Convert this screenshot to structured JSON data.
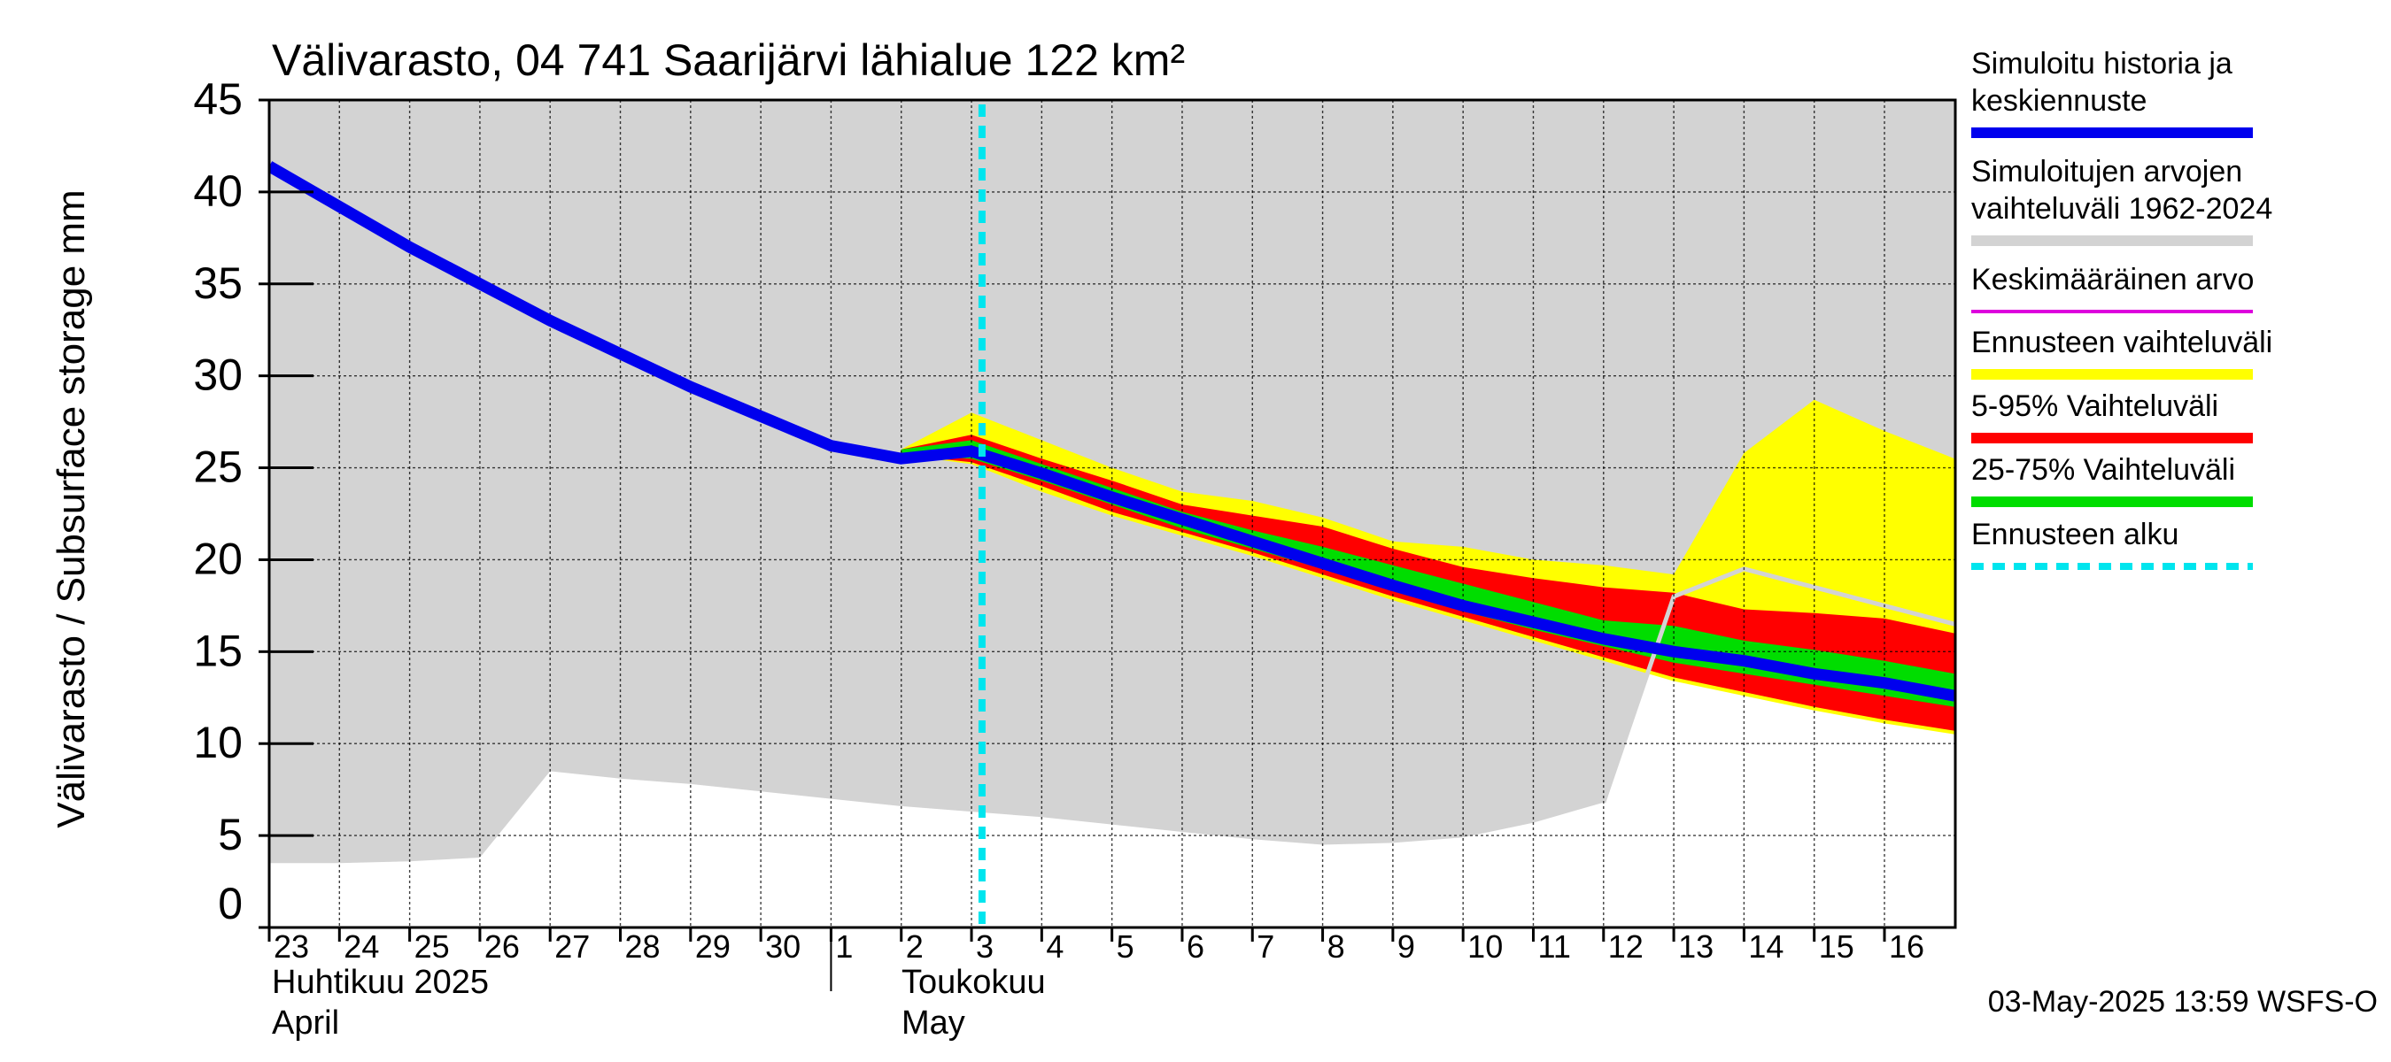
{
  "chart_data": {
    "type": "area",
    "title": "Välivarasto, 04 741 Saarijärvi lähialue 122 km²",
    "ylabel": "Välivarasto / Subsurface storage  mm",
    "ylim": [
      0,
      45
    ],
    "y_ticks": [
      "0",
      "5",
      "10",
      "15",
      "20",
      "25",
      "30",
      "35",
      "40",
      "45"
    ],
    "x_start": "2025-04-23",
    "x_end": "2025-05-16",
    "x_tick_labels": [
      "23",
      "24",
      "25",
      "26",
      "27",
      "28",
      "29",
      "30",
      "1",
      "2",
      "3",
      "4",
      "5",
      "6",
      "7",
      "8",
      "9",
      "10",
      "11",
      "12",
      "13",
      "14",
      "15",
      "16"
    ],
    "month_labels": [
      {
        "fi": "Huhtikuu  2025",
        "en": "April"
      },
      {
        "fi": "Toukokuu",
        "en": "May"
      }
    ],
    "timestamp": "03-May-2025 13:59 WSFS-O",
    "forecast_start": "2025-05-03",
    "grid": true,
    "legend_position": "right",
    "legend": [
      {
        "label": "Simuloitu historia ja keskiennuste",
        "color": "#0000ee",
        "style": "thick"
      },
      {
        "label": "Simuloitujen arvojen vaihteluväli 1962-2024",
        "color": "#d3d3d3",
        "style": "thick"
      },
      {
        "label": "Keskimääräinen arvo",
        "color": "#dd00dd",
        "style": "thin"
      },
      {
        "label": "Ennusteen vaihteluväli",
        "color": "#ffff00",
        "style": "thick"
      },
      {
        "label": "5-95% Vaihteluväli",
        "color": "#ff0000",
        "style": "thick"
      },
      {
        "label": "25-75% Vaihteluväli",
        "color": "#00dd00",
        "style": "thick"
      },
      {
        "label": "Ennusteen alku",
        "color": "#00e5ee",
        "style": "dashed"
      }
    ],
    "series": [
      {
        "name": "Simuloitujen arvojen vaihteluväli 1962-2024",
        "x": [
          "2025-04-23",
          "2025-04-24",
          "2025-04-25",
          "2025-04-26",
          "2025-04-27",
          "2025-04-28",
          "2025-04-29",
          "2025-04-30",
          "2025-05-01",
          "2025-05-02",
          "2025-05-03",
          "2025-05-04",
          "2025-05-05",
          "2025-05-06",
          "2025-05-07",
          "2025-05-08",
          "2025-05-09",
          "2025-05-10",
          "2025-05-11",
          "2025-05-12",
          "2025-05-13",
          "2025-05-14",
          "2025-05-15",
          "2025-05-16",
          "2025-05-17"
        ],
        "lower": [
          3.5,
          3.5,
          3.6,
          3.8,
          8.5,
          8.1,
          7.8,
          7.4,
          7.0,
          6.6,
          6.3,
          6.0,
          5.6,
          5.2,
          4.8,
          4.5,
          4.6,
          4.9,
          5.7,
          6.8,
          18.0,
          19.5,
          18.5,
          17.5,
          16.5
        ],
        "upper": [
          45,
          45,
          45,
          45,
          45,
          45,
          45,
          45,
          45,
          45,
          45,
          45,
          45,
          45,
          45,
          45,
          45,
          45,
          45,
          45,
          45,
          45,
          45,
          45,
          45
        ]
      },
      {
        "name": "Ennusteen vaihteluväli",
        "x": [
          "2025-05-02",
          "2025-05-03",
          "2025-05-04",
          "2025-05-05",
          "2025-05-06",
          "2025-05-07",
          "2025-05-08",
          "2025-05-09",
          "2025-05-10",
          "2025-05-11",
          "2025-05-12",
          "2025-05-13",
          "2025-05-14",
          "2025-05-15",
          "2025-05-16",
          "2025-05-17"
        ],
        "lower": [
          25.7,
          25.2,
          23.7,
          22.4,
          21.3,
          20.2,
          19.0,
          17.8,
          16.7,
          15.6,
          14.5,
          13.4,
          12.6,
          11.8,
          11.1,
          10.5
        ],
        "upper": [
          26.0,
          28.0,
          26.5,
          25.0,
          23.7,
          23.2,
          22.3,
          21.0,
          20.7,
          20.0,
          19.7,
          19.2,
          25.8,
          28.7,
          27.0,
          25.5
        ]
      },
      {
        "name": "5-95% Vaihteluväli",
        "x": [
          "2025-05-02",
          "2025-05-03",
          "2025-05-04",
          "2025-05-05",
          "2025-05-06",
          "2025-05-07",
          "2025-05-08",
          "2025-05-09",
          "2025-05-10",
          "2025-05-11",
          "2025-05-12",
          "2025-05-13",
          "2025-05-14",
          "2025-05-15",
          "2025-05-16",
          "2025-05-17"
        ],
        "lower": [
          25.7,
          25.3,
          24.0,
          22.6,
          21.5,
          20.4,
          19.2,
          18.0,
          16.9,
          15.8,
          14.7,
          13.6,
          12.8,
          12.0,
          11.3,
          10.7
        ],
        "upper": [
          26.0,
          26.8,
          25.5,
          24.3,
          23.0,
          22.4,
          21.8,
          20.6,
          19.6,
          19.0,
          18.5,
          18.2,
          17.3,
          17.1,
          16.8,
          16.0
        ]
      },
      {
        "name": "25-75% Vaihteluväli",
        "x": [
          "2025-05-02",
          "2025-05-03",
          "2025-05-04",
          "2025-05-05",
          "2025-05-06",
          "2025-05-07",
          "2025-05-08",
          "2025-05-09",
          "2025-05-10",
          "2025-05-11",
          "2025-05-12",
          "2025-05-13",
          "2025-05-14",
          "2025-05-15",
          "2025-05-16",
          "2025-05-17"
        ],
        "lower": [
          25.7,
          25.5,
          24.3,
          23.0,
          21.7,
          20.6,
          19.5,
          18.3,
          17.2,
          16.2,
          15.3,
          14.4,
          13.8,
          13.2,
          12.6,
          12.0
        ],
        "upper": [
          26.0,
          26.5,
          25.2,
          23.9,
          22.6,
          21.6,
          20.7,
          19.7,
          18.7,
          17.7,
          16.7,
          16.4,
          15.6,
          15.1,
          14.5,
          13.8
        ]
      },
      {
        "name": "Simuloitu historia ja keskiennuste",
        "x": [
          "2025-04-23",
          "2025-04-24",
          "2025-04-25",
          "2025-04-26",
          "2025-04-27",
          "2025-04-28",
          "2025-04-29",
          "2025-04-30",
          "2025-05-01",
          "2025-05-02",
          "2025-05-03",
          "2025-05-04",
          "2025-05-05",
          "2025-05-06",
          "2025-05-07",
          "2025-05-08",
          "2025-05-09",
          "2025-05-10",
          "2025-05-11",
          "2025-05-12",
          "2025-05-13",
          "2025-05-14",
          "2025-05-15",
          "2025-05-16",
          "2025-05-17"
        ],
        "values": [
          41.4,
          39.2,
          37.0,
          35.0,
          33.0,
          31.2,
          29.4,
          27.8,
          26.2,
          25.5,
          25.9,
          24.7,
          23.4,
          22.2,
          21.0,
          19.8,
          18.6,
          17.5,
          16.6,
          15.7,
          15.0,
          14.5,
          13.8,
          13.3,
          12.6
        ]
      }
    ]
  }
}
